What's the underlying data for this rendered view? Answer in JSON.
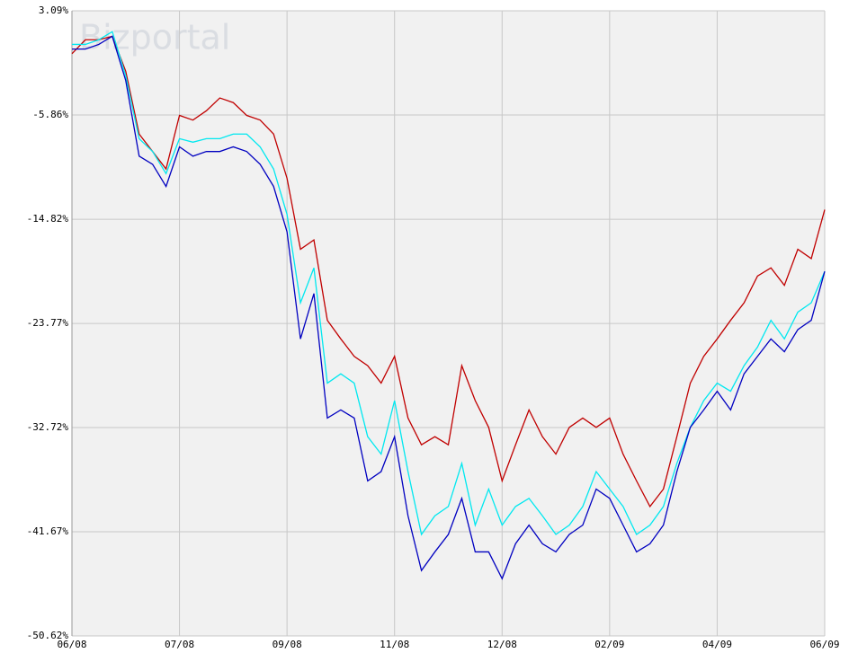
{
  "chart_data": {
    "type": "line",
    "watermark": "Bizportal",
    "categories": [
      "06/08",
      null,
      null,
      null,
      null,
      null,
      null,
      null,
      "07/08",
      null,
      null,
      null,
      null,
      null,
      null,
      null,
      "09/08",
      null,
      null,
      null,
      null,
      null,
      null,
      null,
      "11/08",
      null,
      null,
      null,
      null,
      null,
      null,
      null,
      "12/08",
      null,
      null,
      null,
      null,
      null,
      null,
      null,
      "02/09",
      null,
      null,
      null,
      null,
      null,
      null,
      null,
      "04/09",
      null,
      null,
      null,
      null,
      null,
      null,
      null,
      "06/09"
    ],
    "series": [
      {
        "color": "#c00000",
        "values": [
          -0.6,
          0.6,
          0.6,
          0.9,
          -2.1,
          -7.5,
          -9,
          -10.5,
          -5.9,
          -6.3,
          -5.5,
          -4.4,
          -4.8,
          -5.9,
          -6.3,
          -7.5,
          -11.3,
          -17.4,
          -16.6,
          -23.5,
          -25.1,
          -26.6,
          -27.4,
          -28.9,
          -26.6,
          -31.9,
          -34.2,
          -33.5,
          -34.2,
          -27.4,
          -30.4,
          -32.7,
          -37.3,
          -34.2,
          -31.2,
          -33.5,
          -35,
          -32.7,
          -31.9,
          -32.7,
          -31.9,
          -35,
          -37.3,
          -39.5,
          -38,
          -33.5,
          -28.9,
          -26.6,
          -25.1,
          -23.5,
          -22,
          -19.7,
          -19,
          -20.5,
          -17.4,
          -18.2,
          -14
        ]
      },
      {
        "color": "#00e8f0",
        "values": [
          0.2,
          0.2,
          0.6,
          1.3,
          -2.5,
          -7.9,
          -9,
          -10.9,
          -7.9,
          -8.2,
          -7.9,
          -7.9,
          -7.5,
          -7.5,
          -8.6,
          -10.5,
          -14.4,
          -22,
          -19,
          -28.9,
          -28.1,
          -28.9,
          -33.5,
          -35,
          -30.4,
          -36.5,
          -41.9,
          -40.3,
          -39.5,
          -35.8,
          -41.1,
          -38,
          -41.1,
          -39.5,
          -38.8,
          -40.3,
          -41.9,
          -41.1,
          -39.5,
          -36.5,
          -38,
          -39.5,
          -41.9,
          -41.1,
          -39.5,
          -35.8,
          -32.7,
          -30.4,
          -28.9,
          -29.6,
          -27.4,
          -25.8,
          -23.5,
          -25.1,
          -22.8,
          -22,
          -19.3
        ]
      },
      {
        "color": "#0000c0",
        "values": [
          -0.2,
          -0.2,
          0.2,
          0.9,
          -2.9,
          -9.4,
          -10.1,
          -12,
          -8.6,
          -9.4,
          -9,
          -9,
          -8.6,
          -9,
          -10.1,
          -12,
          -15.9,
          -25.1,
          -21.2,
          -31.9,
          -31.2,
          -31.9,
          -37.3,
          -36.5,
          -33.5,
          -40.3,
          -45,
          -43.4,
          -41.9,
          -38.8,
          -43.4,
          -43.4,
          -45.7,
          -42.7,
          -41.1,
          -42.7,
          -43.4,
          -41.9,
          -41.1,
          -38,
          -38.8,
          -41.1,
          -43.4,
          -42.7,
          -41.1,
          -36.5,
          -32.7,
          -31.2,
          -29.6,
          -31.2,
          -28.1,
          -26.6,
          -25.1,
          -26.2,
          -24.3,
          -23.5,
          -19.3
        ]
      }
    ],
    "ylim": [
      -50.62,
      3.09
    ],
    "yticks": [
      {
        "value": 3.09,
        "label": "3.09%"
      },
      {
        "value": -5.86,
        "label": "-5.86%"
      },
      {
        "value": -14.82,
        "label": "-14.82%"
      },
      {
        "value": -23.77,
        "label": "-23.77%"
      },
      {
        "value": -32.72,
        "label": "-32.72%"
      },
      {
        "value": -41.67,
        "label": "-41.67%"
      },
      {
        "value": -50.62,
        "label": "-50.62%"
      }
    ],
    "grid": true
  }
}
